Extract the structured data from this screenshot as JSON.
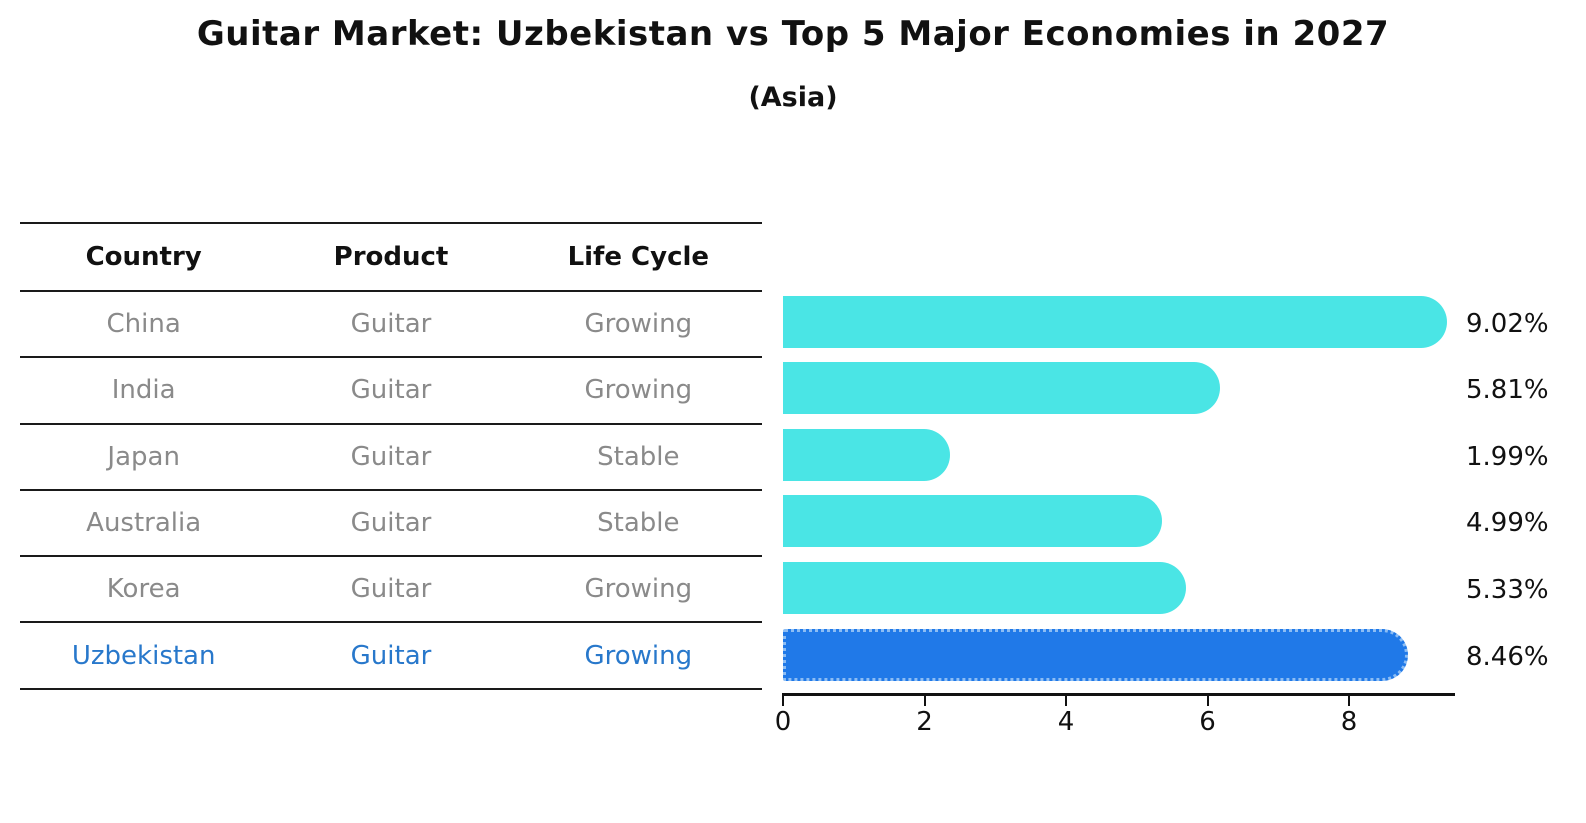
{
  "page": {
    "title": "Guitar Market: Uzbekistan vs Top 5 Major Economies in 2027",
    "subtitle": "(Asia)"
  },
  "table": {
    "headers": [
      "Country",
      "Product",
      "Life Cycle"
    ],
    "rows": [
      {
        "country": "China",
        "product": "Guitar",
        "life_cycle": "Growing"
      },
      {
        "country": "India",
        "product": "Guitar",
        "life_cycle": "Growing"
      },
      {
        "country": "Japan",
        "product": "Guitar",
        "life_cycle": "Stable"
      },
      {
        "country": "Australia",
        "product": "Guitar",
        "life_cycle": "Stable"
      },
      {
        "country": "Korea",
        "product": "Guitar",
        "life_cycle": "Growing"
      },
      {
        "country": "Uzbekistan",
        "product": "Guitar",
        "life_cycle": "Growing"
      }
    ],
    "highlighted_row": "Uzbekistan"
  },
  "chart_data": {
    "type": "bar",
    "orientation": "horizontal",
    "title": "Guitar Market: Uzbekistan vs Top 5 Major Economies in 2027",
    "subtitle": "(Asia)",
    "categories": [
      "China",
      "India",
      "Japan",
      "Australia",
      "Korea",
      "Uzbekistan"
    ],
    "values": [
      9.02,
      5.81,
      1.99,
      4.99,
      5.33,
      8.46
    ],
    "value_labels": [
      "9.02%",
      "5.81%",
      "1.99%",
      "4.99%",
      "5.33%",
      "8.46%"
    ],
    "highlight_index": 5,
    "x_ticks": [
      0,
      2,
      4,
      6,
      8
    ],
    "xlim": [
      0,
      9.5
    ],
    "grid": false,
    "legend": false,
    "colors": {
      "bar": "#4ae5e5",
      "highlight_bar": "#2079e8",
      "highlight_border": "#8cbdf4",
      "highlight_text": "#2878cb",
      "row_text": "#8a8a8a",
      "axis": "#111111"
    }
  }
}
